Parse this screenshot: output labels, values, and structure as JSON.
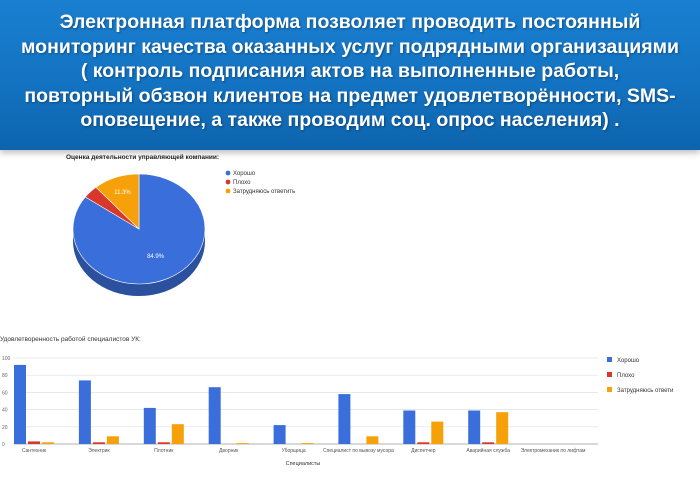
{
  "banner": {
    "lines": [
      "Электронная платформа позволяет проводить постоянный",
      "мониторинг качества оказанных услуг подрядными организациями",
      "( контроль подписания актов на выполненные работы,",
      "повторный обзвон клиентов на предмет удовлетворённости, SMS-",
      "оповещение,  а также проводим соц. опрос населения) ."
    ]
  },
  "chart_data": [
    {
      "type": "pie",
      "title": "Оценка деятельности управляющей компании:",
      "categories": [
        "Хорошо",
        "Плохо",
        "Затрудняюсь ответить"
      ],
      "values": [
        84.9,
        3.8,
        11.3
      ],
      "value_labels": [
        "84.9%",
        "",
        "11.3%"
      ],
      "colors": [
        "#3a6fdb",
        "#d8382a",
        "#f6a00a"
      ],
      "legend_position": "right",
      "style": "3d"
    },
    {
      "type": "bar",
      "title": "Удовлетворенность работой специалистов УК:",
      "xlabel": "Специалисты",
      "ylabel": "",
      "categories": [
        "Сантехник",
        "Электрик",
        "Плотник",
        "Дворник",
        "Уборщица",
        "Специалист по вывозу мусора",
        "Диспетчер",
        "Аварийная служба",
        "Электромеханик по лифтам"
      ],
      "series": [
        {
          "name": "Хорошо",
          "color": "#3a6fdb",
          "values": [
            92,
            74,
            42,
            66,
            22,
            58,
            39,
            39,
            0
          ]
        },
        {
          "name": "Плохо",
          "color": "#d8382a",
          "values": [
            3,
            2,
            2,
            0,
            0,
            0,
            2,
            2,
            0
          ]
        },
        {
          "name": "Затрудняюсь ответить",
          "color": "#f6a00a",
          "values": [
            2,
            9,
            23,
            1,
            1,
            9,
            26,
            37,
            0
          ]
        }
      ],
      "y_ticks": [
        "0",
        "20",
        "40",
        "60",
        "80",
        "100"
      ],
      "ylim": [
        0,
        100
      ],
      "grid": true,
      "legend_position": "right",
      "legend_labels": [
        "Хорошо",
        "Плохо",
        "Затрудняюсь ответи"
      ]
    }
  ]
}
